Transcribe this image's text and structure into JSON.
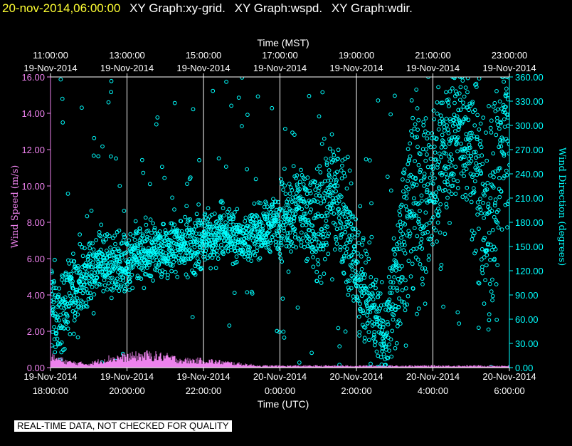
{
  "header": {
    "timestamp": "20-nov-2014,06:00:00",
    "graph_titles": [
      "XY Graph:xy-grid.",
      "XY Graph:wspd.",
      "XY Graph:wdir."
    ]
  },
  "footer": {
    "disclaimer": "REAL-TIME DATA, NOT CHECKED FOR QUALITY"
  },
  "colors": {
    "background": "#000000",
    "speed": "#ee82ee",
    "direction": "#00ffff",
    "grid": "#ffffff",
    "timestamp": "#ffff33"
  },
  "chart_data": {
    "type": "scatter",
    "top_axis_title": "Time (MST)",
    "bottom_axis_title": "Time (UTC)",
    "left_axis_title": "Wind Speed (m/s)",
    "right_axis_title": "Wind Direction (degrees)",
    "top_ticks": [
      {
        "time": "11:00:00",
        "date": "19-Nov-2014"
      },
      {
        "time": "13:00:00",
        "date": "19-Nov-2014"
      },
      {
        "time": "15:00:00",
        "date": "19-Nov-2014"
      },
      {
        "time": "17:00:00",
        "date": "19-Nov-2014"
      },
      {
        "time": "19:00:00",
        "date": "19-Nov-2014"
      },
      {
        "time": "21:00:00",
        "date": "19-Nov-2014"
      },
      {
        "time": "23:00:00",
        "date": "19-Nov-2014"
      }
    ],
    "bottom_ticks": [
      {
        "date": "19-Nov-2014",
        "time": "18:00:00"
      },
      {
        "date": "19-Nov-2014",
        "time": "20:00:00"
      },
      {
        "date": "19-Nov-2014",
        "time": "22:00:00"
      },
      {
        "date": "20-Nov-2014",
        "time": "0:00:00"
      },
      {
        "date": "20-Nov-2014",
        "time": "2:00:00"
      },
      {
        "date": "20-Nov-2014",
        "time": "4:00:00"
      },
      {
        "date": "20-Nov-2014",
        "time": "6:00:00"
      }
    ],
    "x_range_utc_hours": [
      18,
      30
    ],
    "left_ticks": [
      "0.00",
      "2.00",
      "4.00",
      "6.00",
      "8.00",
      "10.00",
      "12.00",
      "14.00",
      "16.00"
    ],
    "left_range": [
      0,
      16
    ],
    "right_ticks": [
      "0.00",
      "30.00",
      "60.00",
      "90.00",
      "120.00",
      "150.00",
      "180.00",
      "210.00",
      "240.00",
      "270.00",
      "300.00",
      "330.00",
      "360.00"
    ],
    "right_range": [
      0,
      360
    ],
    "vertical_grid": true,
    "series": [
      {
        "name": "wspd",
        "axis": "left",
        "marker": "bar",
        "x": [
          18.0,
          18.5,
          19.0,
          19.5,
          20.0,
          20.5,
          21.0,
          21.5,
          22.0,
          22.5,
          23.0,
          23.5,
          24.0,
          24.5,
          25.0,
          25.5,
          26.0,
          26.5,
          27.0,
          27.5,
          28.0,
          28.5,
          29.0,
          29.5,
          30.0
        ],
        "y": [
          0.6,
          0.3,
          0.2,
          0.5,
          0.6,
          0.7,
          0.6,
          0.4,
          0.4,
          0.3,
          0.2,
          0.1,
          0.1,
          0.1,
          0.1,
          0.1,
          0.1,
          0.1,
          0.1,
          0.1,
          0.1,
          0.1,
          0.1,
          0.1,
          0.1
        ]
      },
      {
        "name": "wdir",
        "axis": "right",
        "marker": "circle",
        "x": [
          18.0,
          18.25,
          18.5,
          18.75,
          19.0,
          19.25,
          19.5,
          19.75,
          20.0,
          20.25,
          20.5,
          20.75,
          21.0,
          21.25,
          21.5,
          21.75,
          22.0,
          22.25,
          22.5,
          22.75,
          23.0,
          23.25,
          23.5,
          23.75,
          24.0,
          24.25,
          24.5,
          24.75,
          25.0,
          25.25,
          25.5,
          25.75,
          26.0,
          26.25,
          26.5,
          26.75,
          27.0,
          27.25,
          27.5,
          27.75,
          28.0,
          28.25,
          28.5,
          28.75,
          29.0,
          29.25,
          29.5,
          29.75,
          30.0
        ],
        "y": [
          80,
          60,
          90,
          100,
          120,
          130,
          125,
          135,
          120,
          140,
          140,
          150,
          140,
          150,
          160,
          150,
          160,
          160,
          170,
          165,
          160,
          165,
          170,
          175,
          185,
          190,
          200,
          180,
          180,
          210,
          205,
          175,
          120,
          90,
          60,
          30,
          100,
          180,
          200,
          220,
          230,
          260,
          290,
          300,
          280,
          220,
          160,
          260,
          300
        ],
        "spread": [
          60,
          50,
          50,
          45,
          45,
          40,
          40,
          40,
          40,
          40,
          40,
          35,
          35,
          35,
          35,
          35,
          35,
          35,
          35,
          30,
          30,
          30,
          30,
          35,
          50,
          60,
          60,
          70,
          80,
          70,
          70,
          80,
          80,
          70,
          60,
          50,
          90,
          110,
          120,
          120,
          110,
          100,
          90,
          90,
          100,
          120,
          140,
          120,
          100
        ]
      }
    ]
  }
}
